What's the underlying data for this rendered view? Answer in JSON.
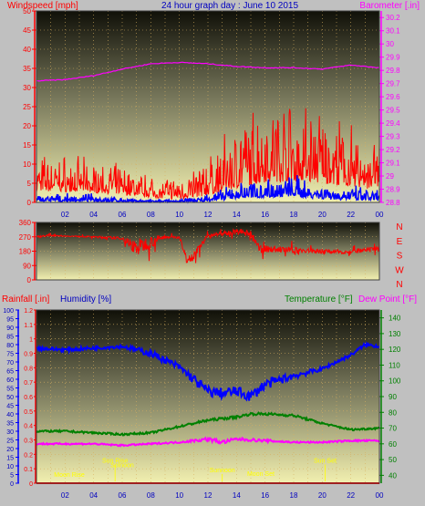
{
  "header": {
    "left_label": "Windspeed [mph]",
    "title": "24 hour graph day : June 10 2015",
    "right_label": "Barometer [.in]"
  },
  "colors": {
    "background": "#c0c0c0",
    "wind": "#ff0000",
    "gust": "#0000ff",
    "barometer": "#ff00ff",
    "direction": "#ff0000",
    "rain": "#ff0000",
    "humidity": "#0000ff",
    "temperature": "#008000",
    "dewpoint": "#ff00ff",
    "astro": "#ffff00",
    "axis_title_blue": "#0000c0",
    "header_blue": "#0000c0"
  },
  "x_ticks": [
    "02",
    "04",
    "06",
    "08",
    "10",
    "12",
    "14",
    "16",
    "18",
    "20",
    "22",
    "00"
  ],
  "chart_data": [
    {
      "type": "line",
      "x_range": [
        0,
        24
      ],
      "y_left": {
        "label": "Windspeed [mph]",
        "ticks": [
          "0",
          "5",
          "10",
          "15",
          "20",
          "25",
          "30",
          "35",
          "40",
          "45",
          "50"
        ],
        "range": [
          0,
          50
        ]
      },
      "y_right": {
        "label": "Barometer [.in]",
        "ticks": [
          "28.8",
          "28.9",
          "29",
          "29.1",
          "29.2",
          "29.3",
          "29.4",
          "29.5",
          "29.6",
          "29.7",
          "29.8",
          "29.9",
          "30",
          "30.1",
          "30.2"
        ],
        "range": [
          28.8,
          30.25
        ]
      },
      "series": [
        {
          "name": "Windspeed",
          "axis": "left",
          "kind": "noise",
          "x": [
            0,
            2,
            4,
            6,
            8,
            10,
            12,
            14,
            16,
            18,
            20,
            22,
            24
          ],
          "y": [
            4,
            4,
            3.5,
            3,
            2,
            1.5,
            3,
            6,
            8,
            8.5,
            7.5,
            6,
            5
          ],
          "spread": [
            5,
            5,
            4,
            4,
            3,
            3,
            5,
            9,
            11,
            12,
            10,
            8,
            7
          ]
        },
        {
          "name": "Gust",
          "axis": "left",
          "kind": "noise",
          "x": [
            0,
            2,
            4,
            6,
            8,
            10,
            12,
            14,
            16,
            18,
            20,
            22,
            24
          ],
          "y": [
            0.5,
            0.5,
            0.5,
            0.3,
            0.2,
            0.2,
            0.5,
            1.5,
            2,
            2.2,
            1.5,
            1,
            0.8
          ],
          "spread": [
            1,
            1,
            1,
            0.5,
            0.3,
            0.3,
            1,
            2,
            3,
            3,
            2.5,
            2,
            1.5
          ]
        },
        {
          "name": "Barometer",
          "axis": "right",
          "x": [
            0,
            2,
            4,
            6,
            8,
            10,
            12,
            14,
            16,
            18,
            20,
            22,
            24
          ],
          "y": [
            29.72,
            29.73,
            29.76,
            29.81,
            29.85,
            29.86,
            29.85,
            29.83,
            29.82,
            29.82,
            29.81,
            29.84,
            29.82
          ]
        }
      ]
    },
    {
      "type": "line",
      "x_range": [
        0,
        24
      ],
      "y_left": {
        "ticks": [
          "0",
          "90",
          "180",
          "270",
          "360"
        ],
        "range": [
          0,
          360
        ]
      },
      "y_right": {
        "ticks": [
          "N",
          "W",
          "S",
          "E",
          "N"
        ]
      },
      "series": [
        {
          "name": "Wind direction",
          "kind": "noise",
          "x": [
            0,
            1,
            2,
            4,
            6,
            7,
            8,
            9,
            10,
            10.5,
            11,
            12,
            13,
            14,
            15,
            15.5,
            16,
            18,
            20,
            22,
            24
          ],
          "y": [
            270,
            280,
            275,
            270,
            260,
            200,
            240,
            270,
            265,
            130,
            150,
            280,
            290,
            300,
            290,
            200,
            195,
            185,
            180,
            175,
            195
          ],
          "spread": [
            20,
            15,
            10,
            15,
            30,
            180,
            120,
            30,
            25,
            80,
            90,
            30,
            40,
            60,
            60,
            120,
            70,
            60,
            50,
            40,
            50
          ]
        }
      ]
    },
    {
      "type": "line",
      "x_range": [
        0,
        24
      ],
      "y_left_rain": {
        "label": "Rainfall [.in]",
        "ticks": [
          "0",
          "0.1",
          "0.2",
          "0.3",
          "0.4",
          "0.5",
          "0.6",
          "0.7",
          "0.8",
          "0.9",
          "1",
          "1.1",
          "1.2"
        ],
        "range": [
          0,
          1.2
        ]
      },
      "y_left_humidity": {
        "label": "Humidity [%]",
        "ticks": [
          "0",
          "5",
          "10",
          "15",
          "20",
          "25",
          "30",
          "35",
          "40",
          "45",
          "50",
          "55",
          "60",
          "65",
          "70",
          "75",
          "80",
          "85",
          "90",
          "95",
          "100"
        ],
        "range": [
          0,
          100
        ]
      },
      "y_right": {
        "label_temp": "Temperature [°F]",
        "label_dew": "Dew Point [°F]",
        "ticks": [
          "40",
          "50",
          "60",
          "70",
          "80",
          "90",
          "100",
          "110",
          "120",
          "130",
          "140"
        ],
        "range": [
          35,
          145
        ]
      },
      "series": [
        {
          "name": "Rainfall",
          "axis": "rain",
          "x": [
            0,
            24
          ],
          "y": [
            0,
            0
          ]
        },
        {
          "name": "Humidity",
          "axis": "humidity",
          "kind": "noise",
          "x": [
            0,
            2,
            4,
            6,
            8,
            10,
            11,
            12,
            13,
            14,
            15,
            16,
            18,
            20,
            22,
            23,
            24
          ],
          "y": [
            78,
            77,
            78,
            79,
            75,
            67,
            60,
            53,
            52,
            53,
            50,
            57,
            62,
            66,
            74,
            80,
            79
          ],
          "spread": [
            1,
            1,
            1,
            1,
            2,
            2,
            3,
            3,
            3,
            3,
            3,
            3,
            2,
            1,
            1,
            1,
            1
          ]
        },
        {
          "name": "Temperature",
          "axis": "temp",
          "kind": "noise",
          "x": [
            0,
            2,
            4,
            6,
            8,
            10,
            12,
            14,
            15,
            16,
            18,
            20,
            22,
            24
          ],
          "y": [
            68,
            68,
            67,
            66,
            67,
            71,
            75,
            77,
            79,
            79,
            78,
            73,
            69,
            70
          ],
          "spread": [
            0.6,
            0.6,
            0.6,
            0.6,
            0.6,
            0.6,
            0.8,
            0.8,
            0.8,
            0.8,
            0.8,
            0.6,
            0.6,
            0.6
          ]
        },
        {
          "name": "Dew Point",
          "axis": "temp",
          "kind": "noise",
          "x": [
            0,
            2,
            4,
            6,
            8,
            10,
            12,
            13,
            14,
            16,
            18,
            20,
            22,
            24
          ],
          "y": [
            60,
            60,
            60,
            59,
            60,
            61,
            63,
            61,
            63,
            62,
            61,
            61,
            62,
            62
          ],
          "spread": [
            0.5,
            0.5,
            0.5,
            0.5,
            0.5,
            0.5,
            1.2,
            1.2,
            1,
            0.8,
            0.5,
            0.5,
            0.5,
            0.5
          ]
        }
      ],
      "astro_labels": [
        {
          "text": "Moon Rise",
          "x": 2.3,
          "temp": 39
        },
        {
          "text": "Sun Rise",
          "x": 5.5,
          "temp": 48,
          "marker": true
        },
        {
          "text": "Solnoon",
          "x": 6.0,
          "temp": 45
        },
        {
          "text": "Sunnoon",
          "x": 13.0,
          "temp": 42,
          "marker": true
        },
        {
          "text": "Moon Set",
          "x": 15.7,
          "temp": 39.5
        },
        {
          "text": "Sun Set",
          "x": 20.2,
          "temp": 48,
          "marker": true
        }
      ]
    }
  ]
}
